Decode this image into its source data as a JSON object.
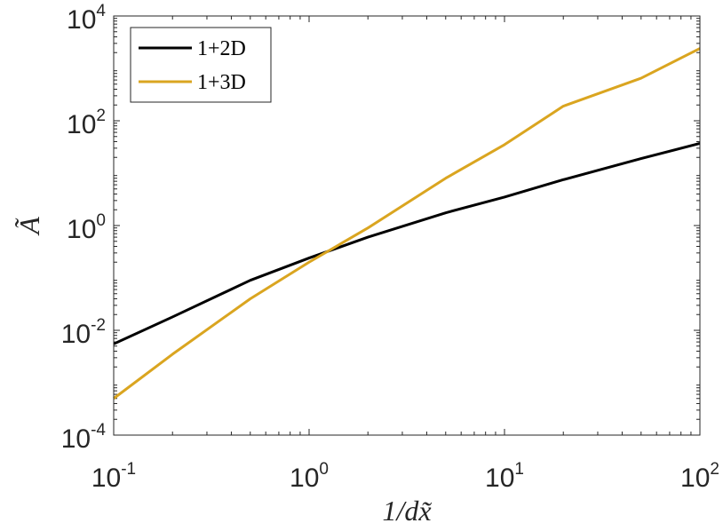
{
  "chart_data": {
    "type": "line",
    "xscale": "log",
    "yscale": "log",
    "xlabel": "1/dx̃",
    "ylabel": "Ã",
    "xlim": [
      0.1,
      100
    ],
    "ylim": [
      0.0001,
      10000
    ],
    "grid": false,
    "legend_position": "top-left",
    "xticks": [
      {
        "base": "10",
        "exp": "-1",
        "value": 0.1
      },
      {
        "base": "10",
        "exp": "0",
        "value": 1
      },
      {
        "base": "10",
        "exp": "1",
        "value": 10
      },
      {
        "base": "10",
        "exp": "2",
        "value": 100
      }
    ],
    "yticks": [
      {
        "base": "10",
        "exp": "-4",
        "value": 0.0001
      },
      {
        "base": "10",
        "exp": "-2",
        "value": 0.01
      },
      {
        "base": "10",
        "exp": "0",
        "value": 1
      },
      {
        "base": "10",
        "exp": "2",
        "value": 100
      },
      {
        "base": "10",
        "exp": "4",
        "value": 10000
      }
    ],
    "series": [
      {
        "name": "1+2D",
        "color": "#000000",
        "x": [
          0.1,
          0.2,
          0.5,
          1,
          2,
          5,
          10,
          20,
          50,
          100
        ],
        "y": [
          0.0055,
          0.018,
          0.09,
          0.24,
          0.6,
          1.75,
          3.5,
          7.5,
          19,
          37
        ]
      },
      {
        "name": "1+3D",
        "color": "#DAA520",
        "x": [
          0.1,
          0.2,
          0.5,
          1,
          2,
          5,
          10,
          20,
          50,
          100
        ],
        "y": [
          0.0005,
          0.0035,
          0.04,
          0.2,
          0.9,
          8,
          35,
          190,
          650,
          2400
        ]
      }
    ]
  }
}
